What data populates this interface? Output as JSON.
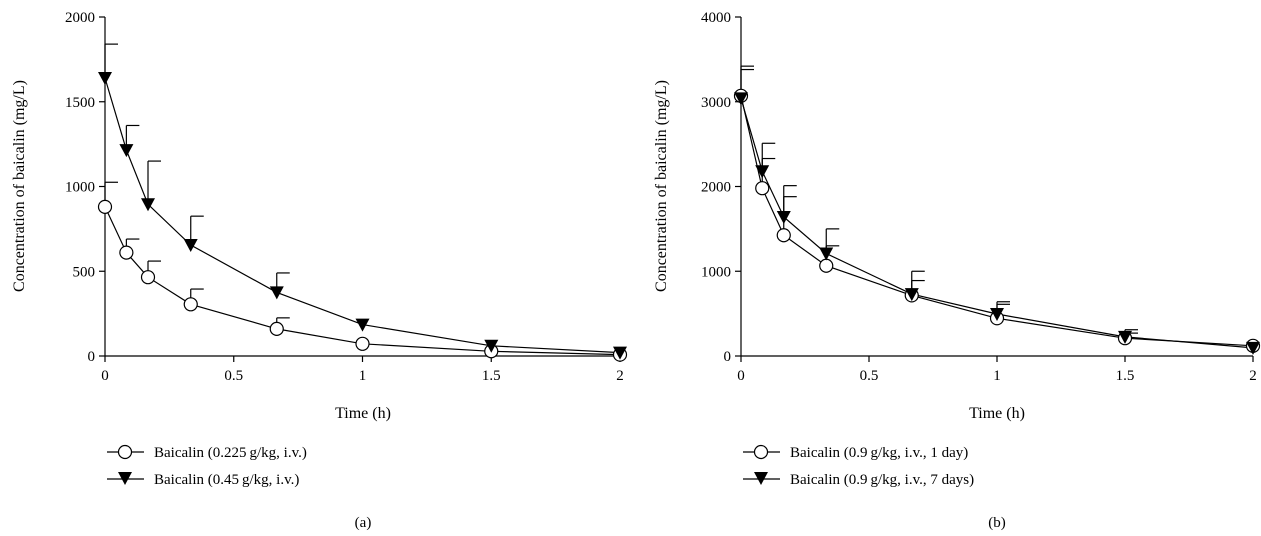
{
  "chart_data": [
    {
      "type": "line",
      "panel_label": "(a)",
      "xlabel": "Time (h)",
      "ylabel": "Concentration of baicalin (mg/L)",
      "xlim": [
        0,
        2
      ],
      "ylim": [
        0,
        2000
      ],
      "xticks": [
        0,
        0.5,
        1,
        1.5,
        2
      ],
      "xtick_labels": [
        "0",
        "0.5",
        "1",
        "1.5",
        "2"
      ],
      "yticks": [
        0,
        500,
        1000,
        1500,
        2000
      ],
      "ytick_labels": [
        "0",
        "500",
        "1000",
        "1500",
        "2000"
      ],
      "grid": false,
      "legend_position": "bottom-left",
      "x": [
        0,
        0.083,
        0.167,
        0.333,
        0.667,
        1,
        1.5,
        2
      ],
      "series": [
        {
          "name": "Baicalin (0.225 g/kg, i.v.)",
          "marker": "open-circle",
          "values": [
            880,
            610,
            465,
            305,
            160,
            72,
            28,
            8
          ],
          "error_upper": [
            1025,
            690,
            560,
            395,
            225,
            null,
            null,
            null
          ]
        },
        {
          "name": "Baicalin (0.45 g/kg, i.v.)",
          "marker": "filled-down-triangle",
          "values": [
            1640,
            1215,
            895,
            655,
            375,
            185,
            60,
            20
          ],
          "error_upper": [
            1840,
            1360,
            1150,
            825,
            490,
            null,
            null,
            null
          ]
        }
      ]
    },
    {
      "type": "line",
      "panel_label": "(b)",
      "xlabel": "Time (h)",
      "ylabel": "Concentration of baicalin (mg/L)",
      "xlim": [
        0,
        2
      ],
      "ylim": [
        0,
        4000
      ],
      "xticks": [
        0,
        0.5,
        1,
        1.5,
        2
      ],
      "xtick_labels": [
        "0",
        "0.5",
        "1",
        "1.5",
        "2"
      ],
      "yticks": [
        0,
        1000,
        2000,
        3000,
        4000
      ],
      "ytick_labels": [
        "0",
        "1000",
        "2000",
        "3000",
        "4000"
      ],
      "grid": false,
      "legend_position": "bottom-left",
      "x": [
        0,
        0.083,
        0.167,
        0.333,
        0.667,
        1,
        1.5,
        2
      ],
      "series": [
        {
          "name": "Baicalin (0.9 g/kg, i.v., 1 day)",
          "marker": "open-circle",
          "values": [
            3070,
            1980,
            1425,
            1065,
            715,
            445,
            210,
            120
          ],
          "error_upper": [
            3380,
            2330,
            1880,
            1300,
            890,
            610,
            270,
            null
          ]
        },
        {
          "name": "Baicalin (0.9 g/kg, i.v., 7 days)",
          "marker": "filled-down-triangle",
          "values": [
            3040,
            2180,
            1640,
            1210,
            730,
            495,
            225,
            95
          ],
          "error_upper": [
            3420,
            2510,
            2010,
            1500,
            1000,
            640,
            310,
            null
          ]
        }
      ]
    }
  ]
}
